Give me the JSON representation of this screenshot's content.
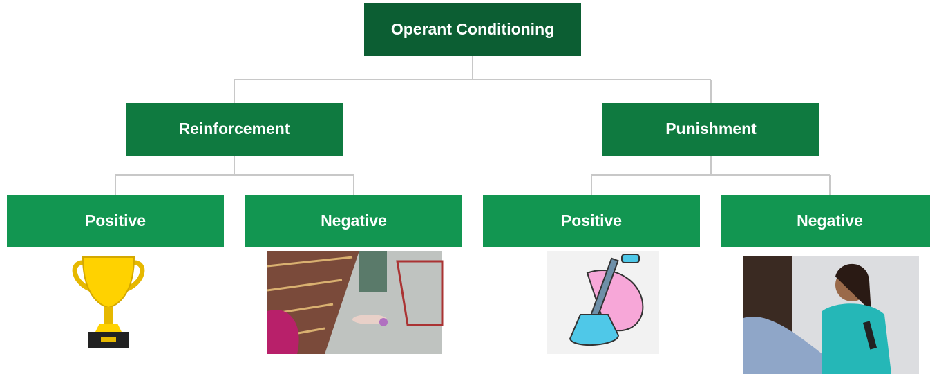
{
  "nodes": [
    {
      "label": "Operant Conditioning"
    },
    {
      "label": "Reinforcement"
    },
    {
      "label": "Punishment"
    },
    {
      "label": "Positive"
    },
    {
      "label": "Negative"
    },
    {
      "label": "Positive"
    },
    {
      "label": "Negative"
    }
  ]
}
